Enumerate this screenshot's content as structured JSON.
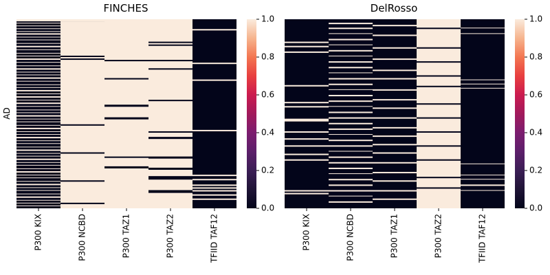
{
  "figure": {
    "panels": [
      "FINCHES",
      "DelRosso"
    ]
  },
  "chart_data": [
    {
      "type": "heatmap",
      "title": "FINCHES",
      "ylabel": "AD",
      "xlabel": "",
      "categories": [
        "P300 KIX",
        "P300 NCBD",
        "P300 TAZ1",
        "P300 TAZ2",
        "TFIID TAF12"
      ],
      "value_range": [
        0,
        1
      ],
      "colorbar": {
        "ticks": [
          "0.0",
          "0.2",
          "0.4",
          "0.6",
          "0.8",
          "1.0"
        ],
        "low_color": "#03051a",
        "high_color": "#faebdd"
      },
      "rows": 270,
      "columns": [
        {
          "name": "P300 KIX",
          "ones": [
            [
              0,
              3
            ],
            [
              5,
              6
            ],
            [
              9,
              10
            ],
            [
              13,
              14
            ],
            [
              17,
              18
            ],
            [
              20,
              22
            ],
            [
              25,
              26
            ],
            [
              29,
              30
            ],
            [
              34,
              35
            ],
            [
              38,
              40
            ],
            [
              43,
              44
            ],
            [
              48,
              49
            ],
            [
              52,
              53
            ],
            [
              56,
              58
            ],
            [
              61,
              62
            ],
            [
              66,
              67
            ],
            [
              70,
              72
            ],
            [
              75,
              76
            ],
            [
              79,
              80
            ],
            [
              83,
              85
            ],
            [
              88,
              89
            ],
            [
              93,
              94
            ],
            [
              97,
              98
            ],
            [
              101,
              103
            ],
            [
              106,
              107
            ],
            [
              110,
              112
            ],
            [
              115,
              116
            ],
            [
              119,
              121
            ],
            [
              124,
              125
            ],
            [
              129,
              130
            ],
            [
              133,
              134
            ],
            [
              137,
              139
            ],
            [
              142,
              143
            ],
            [
              146,
              147
            ],
            [
              151,
              152
            ],
            [
              155,
              157
            ],
            [
              160,
              161
            ],
            [
              164,
              165
            ],
            [
              168,
              170
            ],
            [
              173,
              174
            ],
            [
              177,
              178
            ],
            [
              182,
              183
            ],
            [
              186,
              188
            ],
            [
              191,
              192
            ],
            [
              195,
              196
            ],
            [
              199,
              201
            ],
            [
              204,
              205
            ],
            [
              208,
              209
            ],
            [
              213,
              214
            ],
            [
              217,
              219
            ],
            [
              222,
              223
            ],
            [
              226,
              227
            ],
            [
              231,
              232
            ],
            [
              235,
              237
            ],
            [
              240,
              241
            ],
            [
              244,
              245
            ],
            [
              249,
              250
            ],
            [
              253,
              255
            ],
            [
              258,
              259
            ],
            [
              262,
              263
            ],
            [
              266,
              267
            ]
          ]
        },
        {
          "name": "P300 NCBD",
          "ones": [
            [
              0,
              3
            ],
            [
              3,
              52
            ],
            [
              54,
              56
            ],
            [
              58,
              150
            ],
            [
              152,
              190
            ],
            [
              192,
              230
            ],
            [
              232,
              262
            ],
            [
              264,
              270
            ]
          ]
        },
        {
          "name": "P300 TAZ1",
          "ones": [
            [
              0,
              58
            ],
            [
              60,
              84
            ],
            [
              86,
              122
            ],
            [
              125,
              140
            ],
            [
              143,
              196
            ],
            [
              198,
              210
            ],
            [
              213,
              270
            ]
          ]
        },
        {
          "name": "P300 TAZ2",
          "ones": [
            [
              0,
              32
            ],
            [
              34,
              36
            ],
            [
              38,
              58
            ],
            [
              60,
              70
            ],
            [
              72,
              115
            ],
            [
              117,
              160
            ],
            [
              162,
              168
            ],
            [
              171,
              196
            ],
            [
              199,
              212
            ],
            [
              215,
              224
            ],
            [
              229,
              244
            ],
            [
              248,
              270
            ]
          ]
        },
        {
          "name": "TFIID TAF12",
          "ones": [
            [
              14,
              16
            ],
            [
              62,
              64
            ],
            [
              86,
              88
            ],
            [
              158,
              160
            ],
            [
              222,
              224
            ],
            [
              228,
              230
            ],
            [
              236,
              238
            ],
            [
              240,
              242
            ],
            [
              244,
              246
            ],
            [
              250,
              252
            ],
            [
              256,
              258
            ]
          ]
        }
      ]
    },
    {
      "type": "heatmap",
      "title": "DelRosso",
      "ylabel": "",
      "xlabel": "",
      "categories": [
        "P300 KIX",
        "P300 NCBD",
        "P300 TAZ1",
        "P300 TAZ2",
        "TFIID TAF12"
      ],
      "value_range": [
        0,
        1
      ],
      "colorbar": {
        "ticks": [
          "0.0",
          "0.2",
          "0.4",
          "0.6",
          "0.8",
          "1.0"
        ],
        "low_color": "#03051a",
        "high_color": "#faebdd"
      },
      "rows": 270,
      "columns": [
        {
          "name": "P300 KIX",
          "ones": [
            [
              32,
              34
            ],
            [
              38,
              40
            ],
            [
              46,
              48
            ],
            [
              94,
              96
            ],
            [
              118,
              120
            ],
            [
              124,
              126
            ],
            [
              142,
              146
            ],
            [
              160,
              162
            ],
            [
              170,
              172
            ],
            [
              180,
              182
            ],
            [
              192,
              194
            ],
            [
              200,
              202
            ],
            [
              244,
              246
            ],
            [
              248,
              250
            ]
          ]
        },
        {
          "name": "P300 NCBD",
          "ones": [
            [
              5,
              7
            ],
            [
              12,
              14
            ],
            [
              20,
              21
            ],
            [
              28,
              30
            ],
            [
              36,
              37
            ],
            [
              44,
              46
            ],
            [
              52,
              53
            ],
            [
              60,
              62
            ],
            [
              68,
              70
            ],
            [
              76,
              77
            ],
            [
              84,
              86
            ],
            [
              92,
              94
            ],
            [
              100,
              101
            ],
            [
              108,
              110
            ],
            [
              116,
              118
            ],
            [
              124,
              125
            ],
            [
              132,
              134
            ],
            [
              140,
              142
            ],
            [
              148,
              150
            ],
            [
              156,
              158
            ],
            [
              164,
              165
            ],
            [
              172,
              174
            ],
            [
              180,
              182
            ],
            [
              188,
              189
            ],
            [
              196,
              198
            ],
            [
              204,
              206
            ],
            [
              212,
              214
            ],
            [
              220,
              221
            ],
            [
              228,
              230
            ],
            [
              236,
              238
            ],
            [
              244,
              246
            ],
            [
              252,
              253
            ],
            [
              260,
              262
            ]
          ]
        },
        {
          "name": "P300 TAZ1",
          "ones": [
            [
              8,
              10
            ],
            [
              22,
              24
            ],
            [
              40,
              42
            ],
            [
              56,
              58
            ],
            [
              72,
              74
            ],
            [
              84,
              86
            ],
            [
              100,
              102
            ],
            [
              114,
              116
            ],
            [
              126,
              128
            ],
            [
              140,
              142
            ],
            [
              154,
              156
            ],
            [
              166,
              168
            ],
            [
              178,
              180
            ],
            [
              190,
              192
            ],
            [
              204,
              206
            ],
            [
              218,
              220
            ],
            [
              230,
              232
            ],
            [
              244,
              246
            ],
            [
              256,
              258
            ]
          ]
        },
        {
          "name": "P300 TAZ2",
          "ones": [
            [
              0,
              12
            ],
            [
              14,
              40
            ],
            [
              42,
              60
            ],
            [
              62,
              80
            ],
            [
              82,
              95
            ],
            [
              97,
              120
            ],
            [
              122,
              140
            ],
            [
              142,
              160
            ],
            [
              162,
              180
            ],
            [
              182,
              200
            ],
            [
              202,
              225
            ],
            [
              227,
              240
            ],
            [
              242,
              270
            ]
          ]
        },
        {
          "name": "TFIID TAF12",
          "ones": [
            [
              12,
              13
            ],
            [
              20,
              21
            ],
            [
              86,
              87
            ],
            [
              92,
              93
            ],
            [
              98,
              99
            ],
            [
              206,
              207
            ],
            [
              222,
              223
            ],
            [
              228,
              229
            ],
            [
              236,
              238
            ],
            [
              244,
              245
            ]
          ]
        }
      ]
    }
  ]
}
